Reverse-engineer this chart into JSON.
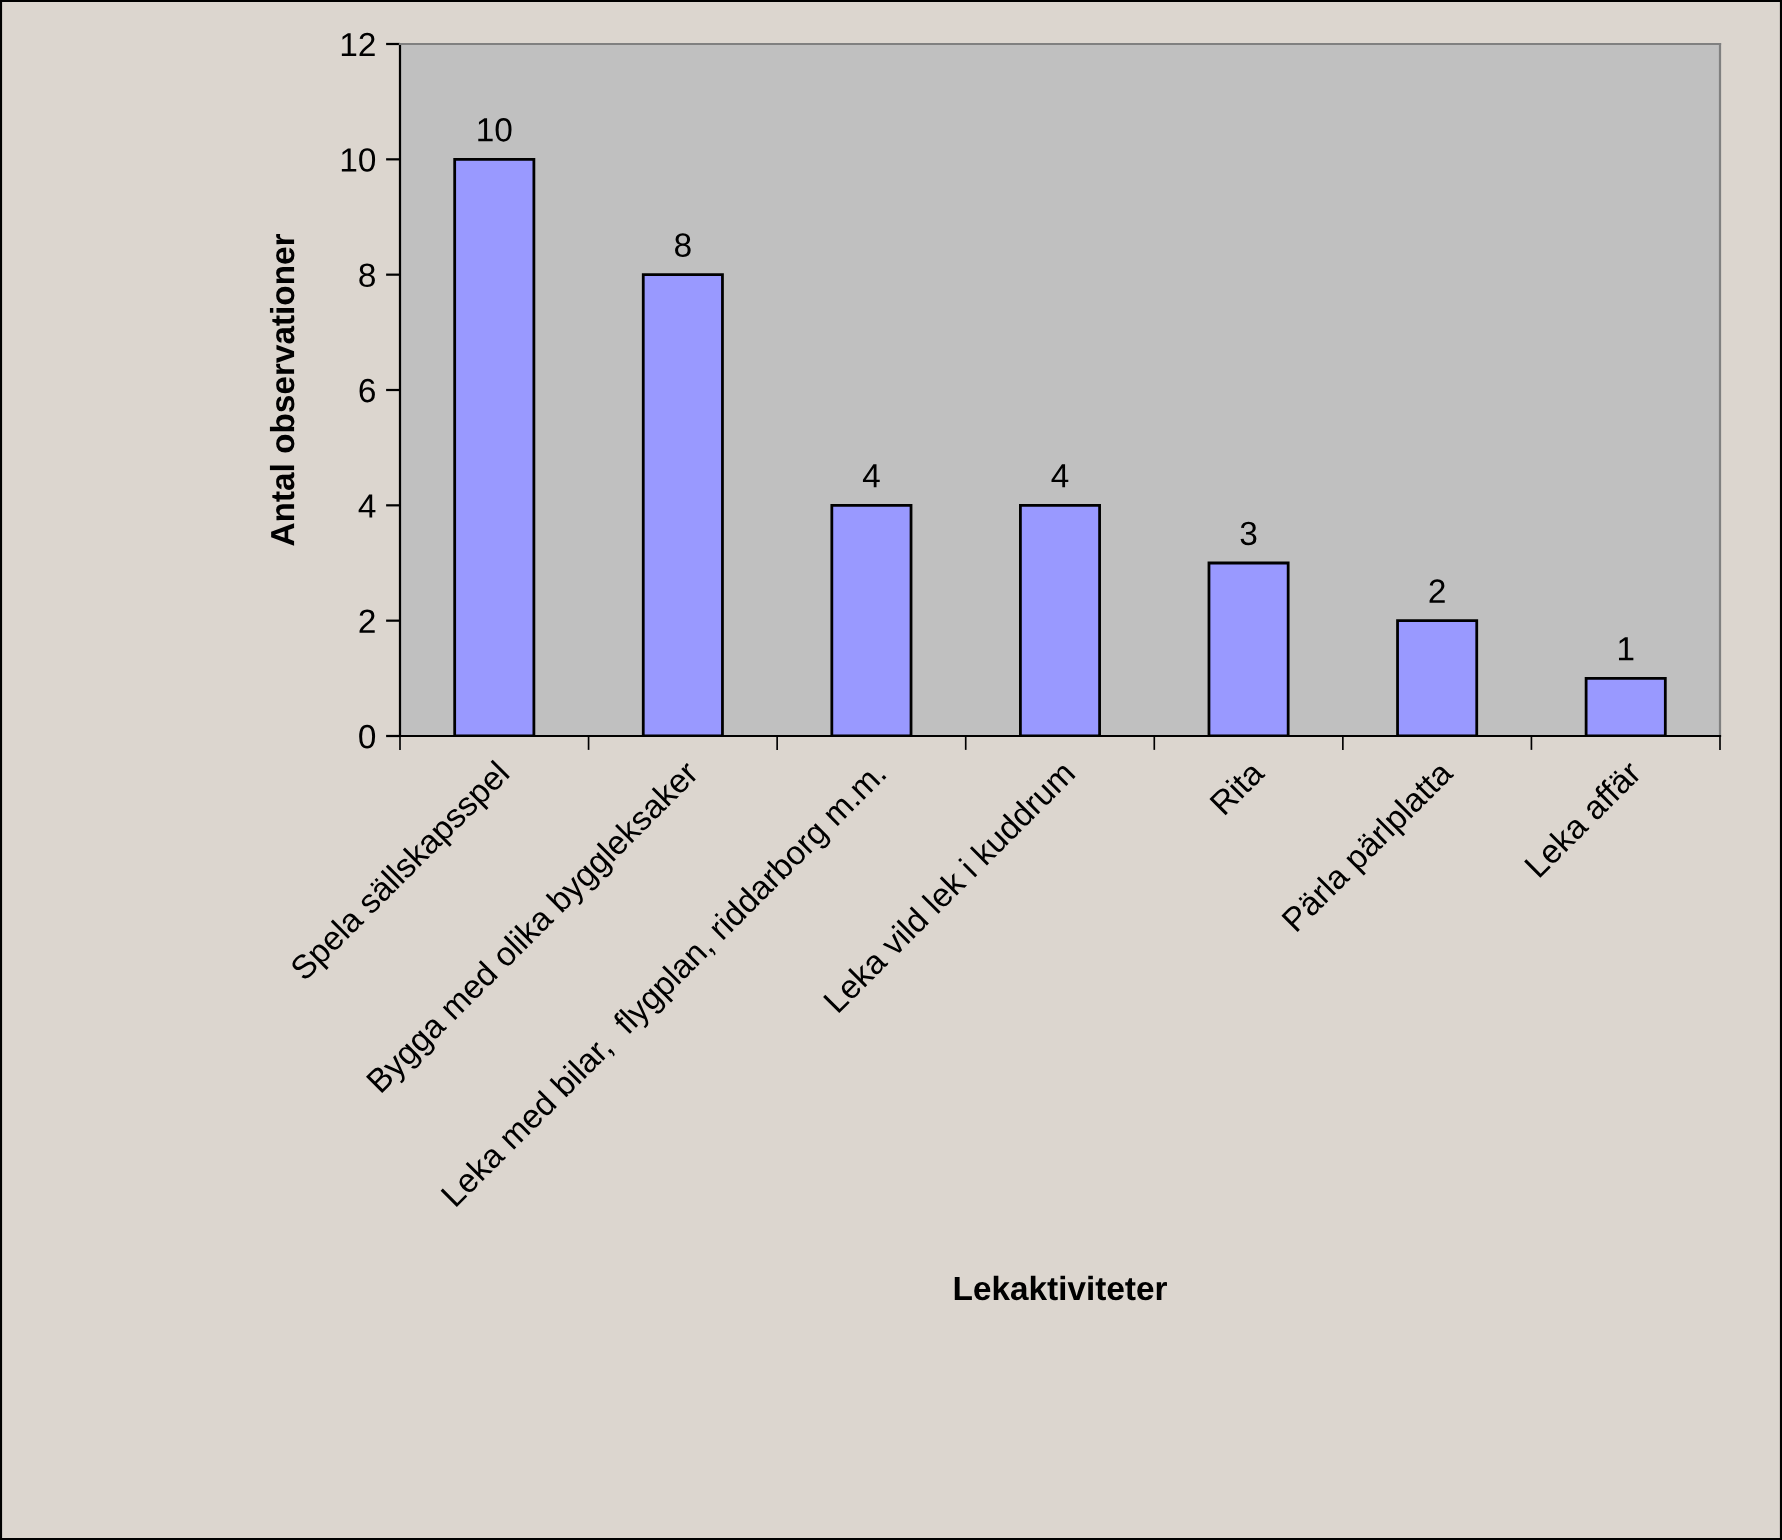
{
  "chart_data": {
    "type": "bar",
    "xlabel": "Lekaktiviteter",
    "ylabel": "Antal observationer",
    "categories": [
      "Spela sällskapsspel",
      "Bygga med olika byggleksaker",
      "Leka med bilar,  flygplan, riddarborg m.m.",
      "Leka vild lek i kuddrum",
      "Rita",
      "Pärla pärlplatta",
      "Leka affär"
    ],
    "values": [
      10,
      8,
      4,
      4,
      3,
      2,
      1
    ],
    "color": "#9999ff",
    "ylim": [
      0,
      12
    ],
    "yticks": [
      0,
      2,
      4,
      6,
      8,
      10,
      12
    ],
    "data_labels": true,
    "grid": false,
    "legend": false
  }
}
